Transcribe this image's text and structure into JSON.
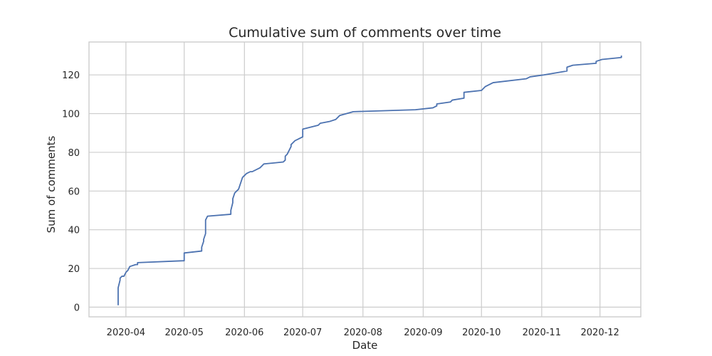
{
  "chart_data": {
    "type": "line",
    "title": "Cumulative sum of comments over time",
    "xlabel": "Date",
    "ylabel": "Sum of comments",
    "x_axis_type": "date",
    "xlim": [
      "2020-03-13",
      "2020-12-22"
    ],
    "ylim": [
      -5,
      137
    ],
    "x_ticks": [
      "2020-04-01",
      "2020-05-01",
      "2020-06-01",
      "2020-07-01",
      "2020-08-01",
      "2020-09-01",
      "2020-10-01",
      "2020-11-01",
      "2020-12-01"
    ],
    "x_tick_labels": [
      "2020-04",
      "2020-05",
      "2020-06",
      "2020-07",
      "2020-08",
      "2020-09",
      "2020-10",
      "2020-11",
      "2020-12"
    ],
    "y_ticks": [
      0,
      20,
      40,
      60,
      80,
      100,
      120
    ],
    "grid": true,
    "line_color": "#4c72b0",
    "series": [
      {
        "x": [
          "2020-03-28",
          "2020-03-28",
          "2020-03-29",
          "2020-03-29",
          "2020-03-30",
          "2020-03-31",
          "2020-04-01",
          "2020-04-02",
          "2020-04-03",
          "2020-04-06",
          "2020-04-07",
          "2020-04-07",
          "2020-05-01",
          "2020-05-01",
          "2020-05-10",
          "2020-05-10",
          "2020-05-11",
          "2020-05-11",
          "2020-05-12",
          "2020-05-12",
          "2020-05-12",
          "2020-05-13",
          "2020-05-25",
          "2020-05-25",
          "2020-05-26",
          "2020-05-26",
          "2020-05-27",
          "2020-05-28",
          "2020-05-29",
          "2020-05-29",
          "2020-05-30",
          "2020-05-31",
          "2020-06-01",
          "2020-06-02",
          "2020-06-04",
          "2020-06-05",
          "2020-06-09",
          "2020-06-10",
          "2020-06-11",
          "2020-06-21",
          "2020-06-22",
          "2020-06-22",
          "2020-06-23",
          "2020-06-25",
          "2020-06-25",
          "2020-06-26",
          "2020-06-27",
          "2020-06-27",
          "2020-06-29",
          "2020-07-01",
          "2020-07-01",
          "2020-07-09",
          "2020-07-10",
          "2020-07-15",
          "2020-07-18",
          "2020-07-20",
          "2020-07-27",
          "2020-08-28",
          "2020-09-06",
          "2020-09-08",
          "2020-09-08",
          "2020-09-15",
          "2020-09-16",
          "2020-09-22",
          "2020-09-22",
          "2020-10-01",
          "2020-10-03",
          "2020-10-07",
          "2020-10-24",
          "2020-10-26",
          "2020-11-02",
          "2020-11-14",
          "2020-11-14",
          "2020-11-17",
          "2020-11-29",
          "2020-11-29",
          "2020-12-02",
          "2020-12-12",
          "2020-12-12"
        ],
        "y": [
          1,
          10,
          14,
          15,
          16,
          16,
          18,
          19,
          21,
          22,
          22,
          23,
          24,
          28,
          29,
          31,
          34,
          35,
          38,
          41,
          45,
          47,
          48,
          50,
          54,
          56,
          59,
          60,
          61,
          61,
          64,
          67,
          68,
          69,
          70,
          70,
          72,
          73,
          74,
          75,
          76,
          78,
          79,
          83,
          84,
          85,
          86,
          86,
          87,
          88,
          92,
          94,
          95,
          96,
          97,
          99,
          101,
          102,
          103,
          104,
          105,
          106,
          107,
          108,
          111,
          112,
          114,
          116,
          118,
          119,
          120,
          122,
          124,
          125,
          126,
          127,
          128,
          129,
          130
        ]
      }
    ]
  }
}
